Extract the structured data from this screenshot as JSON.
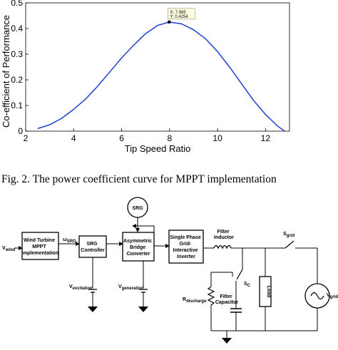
{
  "chart_data": {
    "type": "line",
    "xlabel": "Tip Speed Ratio",
    "ylabel": "Co-efficient of Performance",
    "xlim": [
      2,
      13
    ],
    "ylim": [
      0,
      0.5
    ],
    "xticks": [
      "2",
      "4",
      "6",
      "8",
      "10",
      "12"
    ],
    "yticks": [
      "0",
      "0.1",
      "0.2",
      "0.3",
      "0.4",
      "0.5"
    ],
    "grid": false,
    "series": [
      {
        "x": [
          2.5,
          3.0,
          3.5,
          4.0,
          4.5,
          5.0,
          5.5,
          6.0,
          6.5,
          7.0,
          7.5,
          7.985,
          8.5,
          9.0,
          9.5,
          10.0,
          10.5,
          11.0,
          11.5,
          12.0,
          12.5,
          12.8
        ],
        "y": [
          0.01,
          0.025,
          0.05,
          0.085,
          0.125,
          0.175,
          0.23,
          0.285,
          0.335,
          0.38,
          0.412,
          0.4254,
          0.418,
          0.395,
          0.36,
          0.31,
          0.25,
          0.185,
          0.12,
          0.065,
          0.02,
          0.0
        ]
      }
    ],
    "datatip": {
      "line1": "X: 7.985",
      "line2": "Y: 0.4254",
      "x": 7.985,
      "y": 0.4254
    }
  },
  "caption": "Fig. 2. The power coefficient curve for MPPT implementation",
  "diagram": {
    "v_wind": "V",
    "v_wind_sub": "wind",
    "wind_turbine_block": [
      "Wind Turbine",
      "MPPT",
      "Implementation"
    ],
    "omega_srg": "ω",
    "omega_srg_sub": "SRG",
    "srg_controller_block": [
      "SRG",
      "Controller"
    ],
    "srg_machine": "SRG",
    "asym_converter_block": [
      "Asymmetric",
      "Bridge",
      "Converter"
    ],
    "inverter_block": [
      "Single Phase",
      "Grid-",
      "Interactive",
      "Inverter"
    ],
    "filter_inductor": [
      "Filter",
      "Inductor"
    ],
    "s_grid": "S",
    "s_grid_sub": "grid",
    "s_c": "S",
    "s_c_sub": "C",
    "load": "Load",
    "r_discharge": "R",
    "r_discharge_sub": "discharge",
    "filter_capacitor": [
      "Filter",
      "Capacitor"
    ],
    "v_excitation": "V",
    "v_excitation_sub": "excitation",
    "v_generation": "V",
    "v_generation_sub": "generation",
    "v_grid": "V",
    "v_grid_sub": "grid"
  }
}
